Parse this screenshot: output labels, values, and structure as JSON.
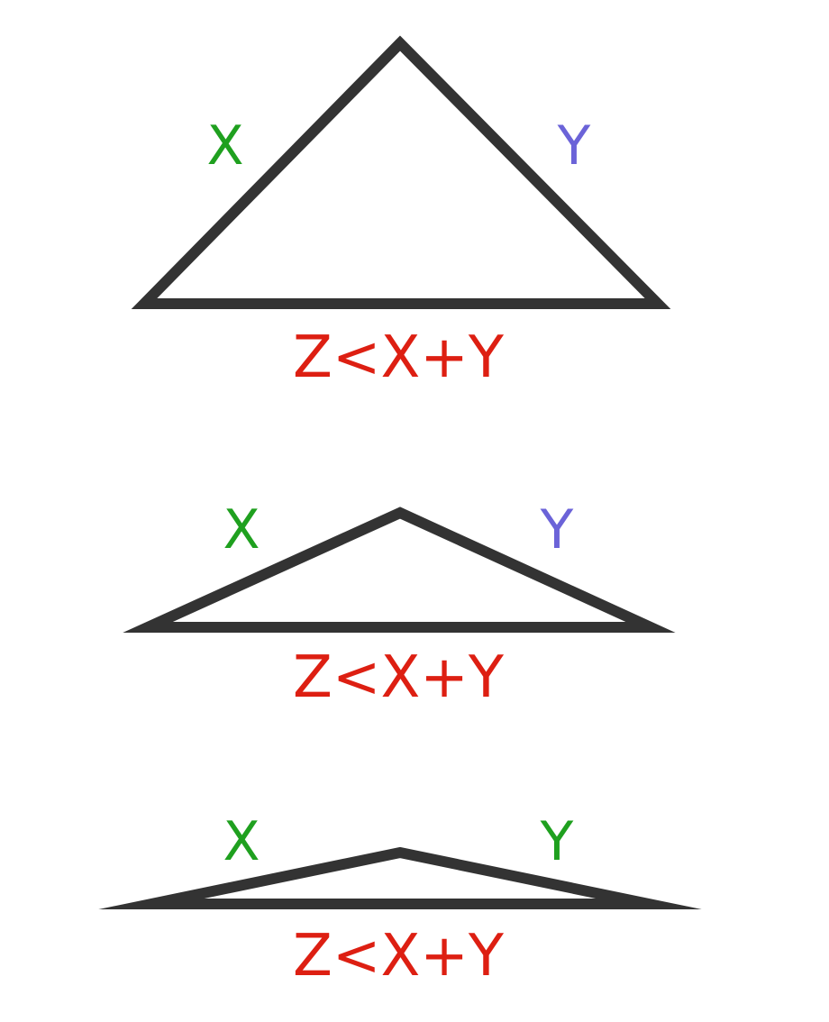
{
  "colors": {
    "outline": "#333333",
    "x_label": "#1fa01f",
    "y_label_blue": "#6b63d8",
    "y_label_green": "#1fa01f",
    "inequality": "#dd1f12"
  },
  "panels": [
    {
      "x_label": "X",
      "y_label": "Y",
      "y_color": "y_label_blue",
      "inequality": "Z<X+Y"
    },
    {
      "x_label": "X",
      "y_label": "Y",
      "y_color": "y_label_blue",
      "inequality": "Z<X+Y"
    },
    {
      "x_label": "X",
      "y_label": "Y",
      "y_color": "y_label_green",
      "inequality": "Z<X+Y"
    }
  ]
}
